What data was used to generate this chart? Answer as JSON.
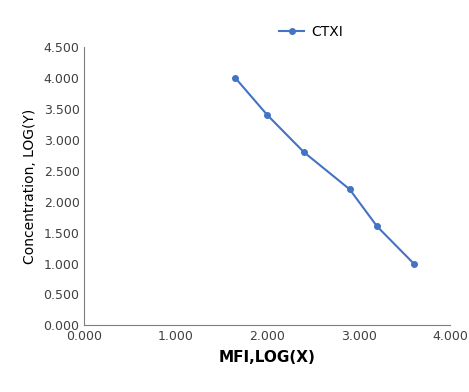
{
  "x_values": [
    1.65,
    2.0,
    2.4,
    2.9,
    3.2,
    3.6
  ],
  "y_values": [
    4.0,
    3.4,
    2.8,
    2.2,
    1.6,
    1.0
  ],
  "line_color": "#4472C4",
  "marker_color": "#4472C4",
  "marker_style": "o",
  "marker_size": 4,
  "line_width": 1.5,
  "xlabel": "MFI,LOG(X)",
  "ylabel": "Concentration, LOG(Y)",
  "legend_label": "CTXI",
  "xlim": [
    0.0,
    4.0
  ],
  "ylim": [
    0.0,
    4.5
  ],
  "xticks": [
    0.0,
    1.0,
    2.0,
    3.0,
    4.0
  ],
  "yticks": [
    0.0,
    0.5,
    1.0,
    1.5,
    2.0,
    2.5,
    3.0,
    3.5,
    4.0,
    4.5
  ],
  "xtick_labels": [
    "0.000",
    "1.000",
    "2.000",
    "3.000",
    "4.000"
  ],
  "ytick_labels": [
    "0.000",
    "0.500",
    "1.000",
    "1.500",
    "2.000",
    "2.500",
    "3.000",
    "3.500",
    "4.000",
    "4.500"
  ],
  "background_color": "#ffffff",
  "xlabel_fontsize": 11,
  "ylabel_fontsize": 10,
  "tick_fontsize": 9,
  "legend_fontsize": 10,
  "spine_color": "#7F7F7F",
  "tick_label_color": "#404040"
}
